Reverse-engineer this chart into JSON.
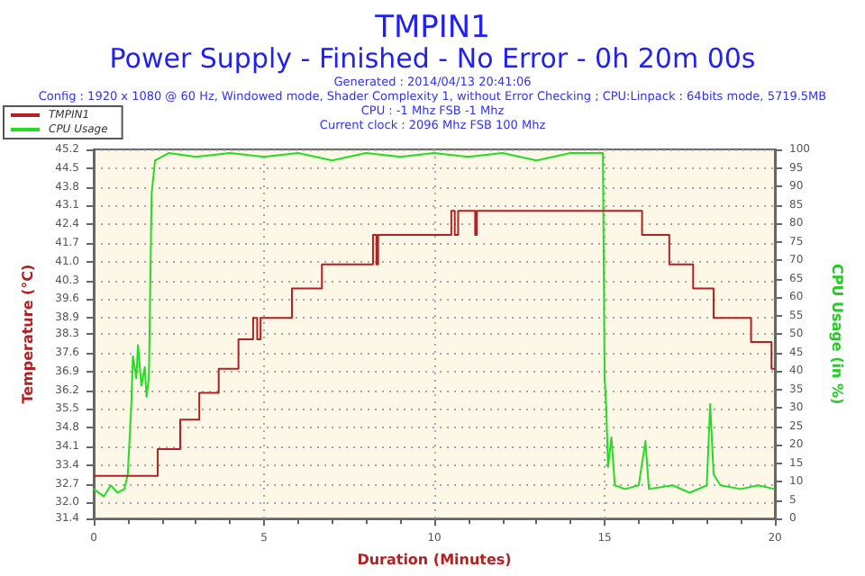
{
  "chart_data": {
    "type": "step",
    "title": "TMPIN1",
    "subtitle": "Power Supply - Finished - No Error - 0h 20m 00s",
    "annotations": [
      "Generated : 2014/04/13 20:41:06",
      "Config : 1920 x 1080 @ 60 Hz, Windowed mode, Shader Complexity 1, without Error Checking ; CPU:Linpack : 64bits mode, 5719.5MB",
      "CPU : -1 Mhz FSB -1 Mhz",
      "Current clock : 2096 Mhz FSB 100 Mhz"
    ],
    "xlabel": "Duration (Minutes)",
    "ylabel": "Temperature (°C)",
    "y2label": "CPU Usage (in %)",
    "xlim": [
      0,
      20
    ],
    "xticks": [
      0,
      5,
      10,
      15,
      20
    ],
    "ylim": [
      31.4,
      45.2
    ],
    "yticks": [
      31.4,
      {
        "value": 32,
        "label": "32.0"
      },
      32.7,
      33.4,
      34.1,
      34.8,
      35.5,
      36.2,
      36.9,
      37.6,
      38.3,
      38.9,
      39.6,
      40.3,
      {
        "value": 41,
        "label": "41.0"
      },
      41.7,
      42.4,
      43.1,
      43.8,
      44.5,
      45.2
    ],
    "y2lim": [
      0,
      100
    ],
    "y2ticks": [
      0,
      5,
      10,
      15,
      20,
      25,
      30,
      35,
      40,
      45,
      50,
      55,
      60,
      65,
      70,
      75,
      80,
      85,
      90,
      95,
      100
    ],
    "grid": true,
    "legend": "top left",
    "series": [
      {
        "name": "TMPIN1",
        "color": "#b22222",
        "x": [
          0,
          1.88,
          2.54,
          3.1,
          3.67,
          4.25,
          4.68,
          4.8,
          4.9,
          5.82,
          6.7,
          8.2,
          8.3,
          8.35,
          10.5,
          10.6,
          10.7,
          11.2,
          11.25,
          16.1,
          16.9,
          17.6,
          18.2,
          19.3,
          19.9,
          20
        ],
        "values": [
          33.0,
          34.0,
          35.1,
          36.1,
          37.0,
          38.1,
          38.9,
          38.1,
          38.9,
          40.0,
          40.9,
          42.0,
          40.9,
          42.0,
          42.9,
          42.0,
          42.9,
          42.0,
          42.9,
          42.0,
          40.9,
          40.0,
          38.9,
          38.0,
          37.0,
          37.0
        ]
      },
      {
        "name": "CPU Usage",
        "type": "line",
        "axis": "y2",
        "color": "#22dd22",
        "x": [
          0,
          0.3,
          0.5,
          0.7,
          0.9,
          1.0,
          1.1,
          1.15,
          1.25,
          1.3,
          1.4,
          1.5,
          1.55,
          1.62,
          1.7,
          1.8,
          2.2,
          3,
          4,
          5,
          6,
          7,
          8,
          9,
          10,
          11,
          12,
          13,
          14,
          14.95,
          15.0,
          15.05,
          15.1,
          15.2,
          15.3,
          15.6,
          16.0,
          16.2,
          16.3,
          17,
          17.5,
          18.0,
          18.1,
          18.2,
          18.4,
          19,
          19.5,
          20
        ],
        "values": [
          8,
          6,
          9,
          7,
          8,
          12,
          30,
          44,
          38,
          47,
          36,
          41,
          33,
          38,
          88,
          97,
          99,
          98,
          99,
          98,
          99,
          97,
          99,
          98,
          99,
          98,
          99,
          97,
          99,
          99,
          38,
          30,
          14,
          22,
          9,
          8,
          9,
          21,
          8,
          9,
          7,
          9,
          31,
          12,
          9,
          8,
          9,
          8
        ]
      }
    ]
  }
}
